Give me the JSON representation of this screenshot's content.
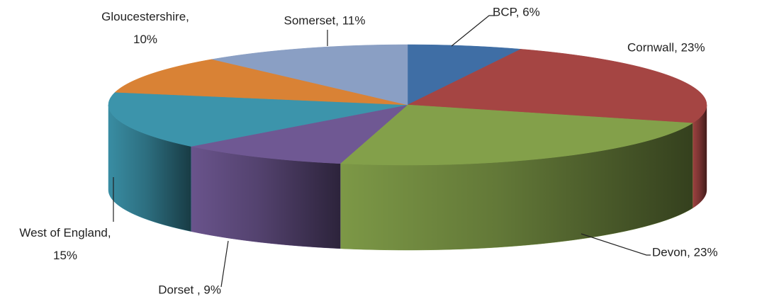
{
  "chart_data": {
    "type": "pie3d",
    "values": [
      6,
      23,
      23,
      9,
      15,
      10,
      11
    ],
    "value_labels": [
      "BCP, 6%",
      "Cornwall, 23%",
      "Devon, 23%",
      "Dorset , 9%",
      "West of England, 15%",
      "Gloucestershire, 10%",
      "Somerset, 11%"
    ],
    "colors": [
      "#3f6ea5",
      "#a54543",
      "#83a04a",
      "#6f5893",
      "#3c94ab",
      "#d98235",
      "#8a9fc4"
    ]
  }
}
